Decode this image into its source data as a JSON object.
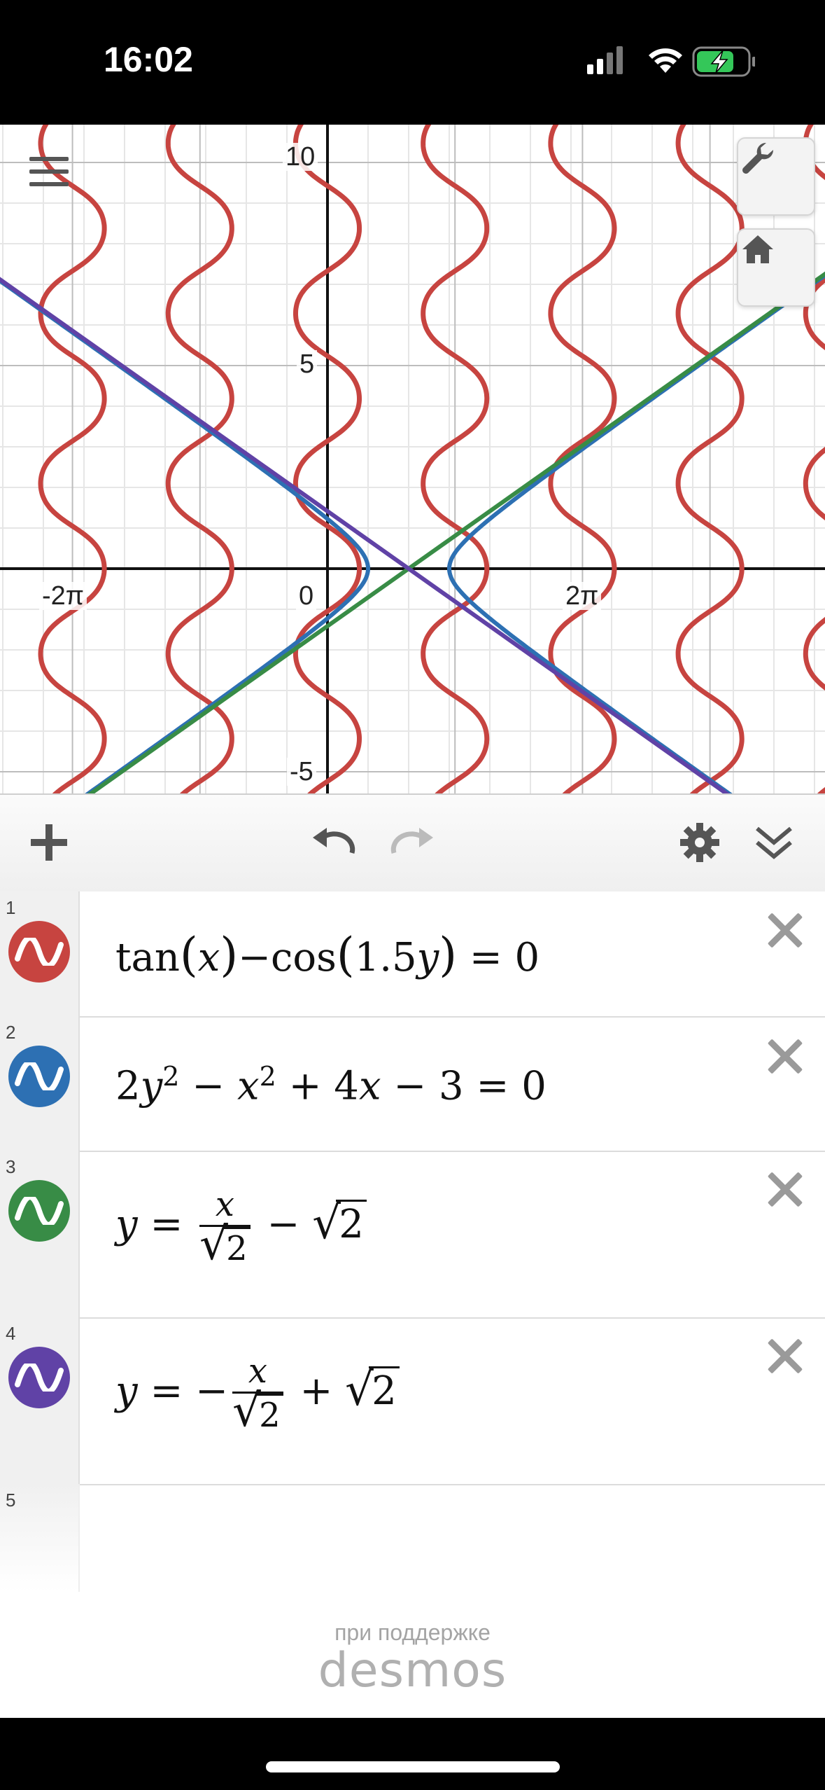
{
  "status_bar": {
    "time": "16:02"
  },
  "graph": {
    "x_labels": [
      "-2π",
      "0",
      "2π"
    ],
    "y_labels": [
      "10",
      "5",
      "-5"
    ]
  },
  "expressions": [
    {
      "index": "1",
      "color": "#c74440",
      "parts": {
        "a": "tan",
        "b": "(",
        "c": "x",
        "d": ")",
        "e": "−cos",
        "f": "(",
        "g": "1.5",
        "h": "y",
        "i": ")",
        "j": " = 0"
      }
    },
    {
      "index": "2",
      "color": "#2d70b3",
      "parts": {
        "a": "2",
        "b": "y",
        "c": "2",
        "d": " − ",
        "e": "x",
        "f": "2",
        "g": " + 4",
        "h": "x",
        "i": " − 3 = 0"
      }
    },
    {
      "index": "3",
      "color": "#388c46",
      "parts": {
        "lhs": "y",
        "eq": " = ",
        "num": "x",
        "rad": "2",
        "minus": " − ",
        "rad2": "2"
      }
    },
    {
      "index": "4",
      "color": "#6042a6",
      "parts": {
        "lhs": "y",
        "eq": " = −",
        "num": "x",
        "rad": "2",
        "plus": " + ",
        "rad2": "2"
      }
    },
    {
      "index": "5"
    }
  ],
  "footer": {
    "powered_by": "при поддержке",
    "brand": "desmos"
  },
  "colors": {
    "red": "#c74440",
    "blue": "#2d70b3",
    "green": "#388c46",
    "purple": "#6042a6"
  }
}
